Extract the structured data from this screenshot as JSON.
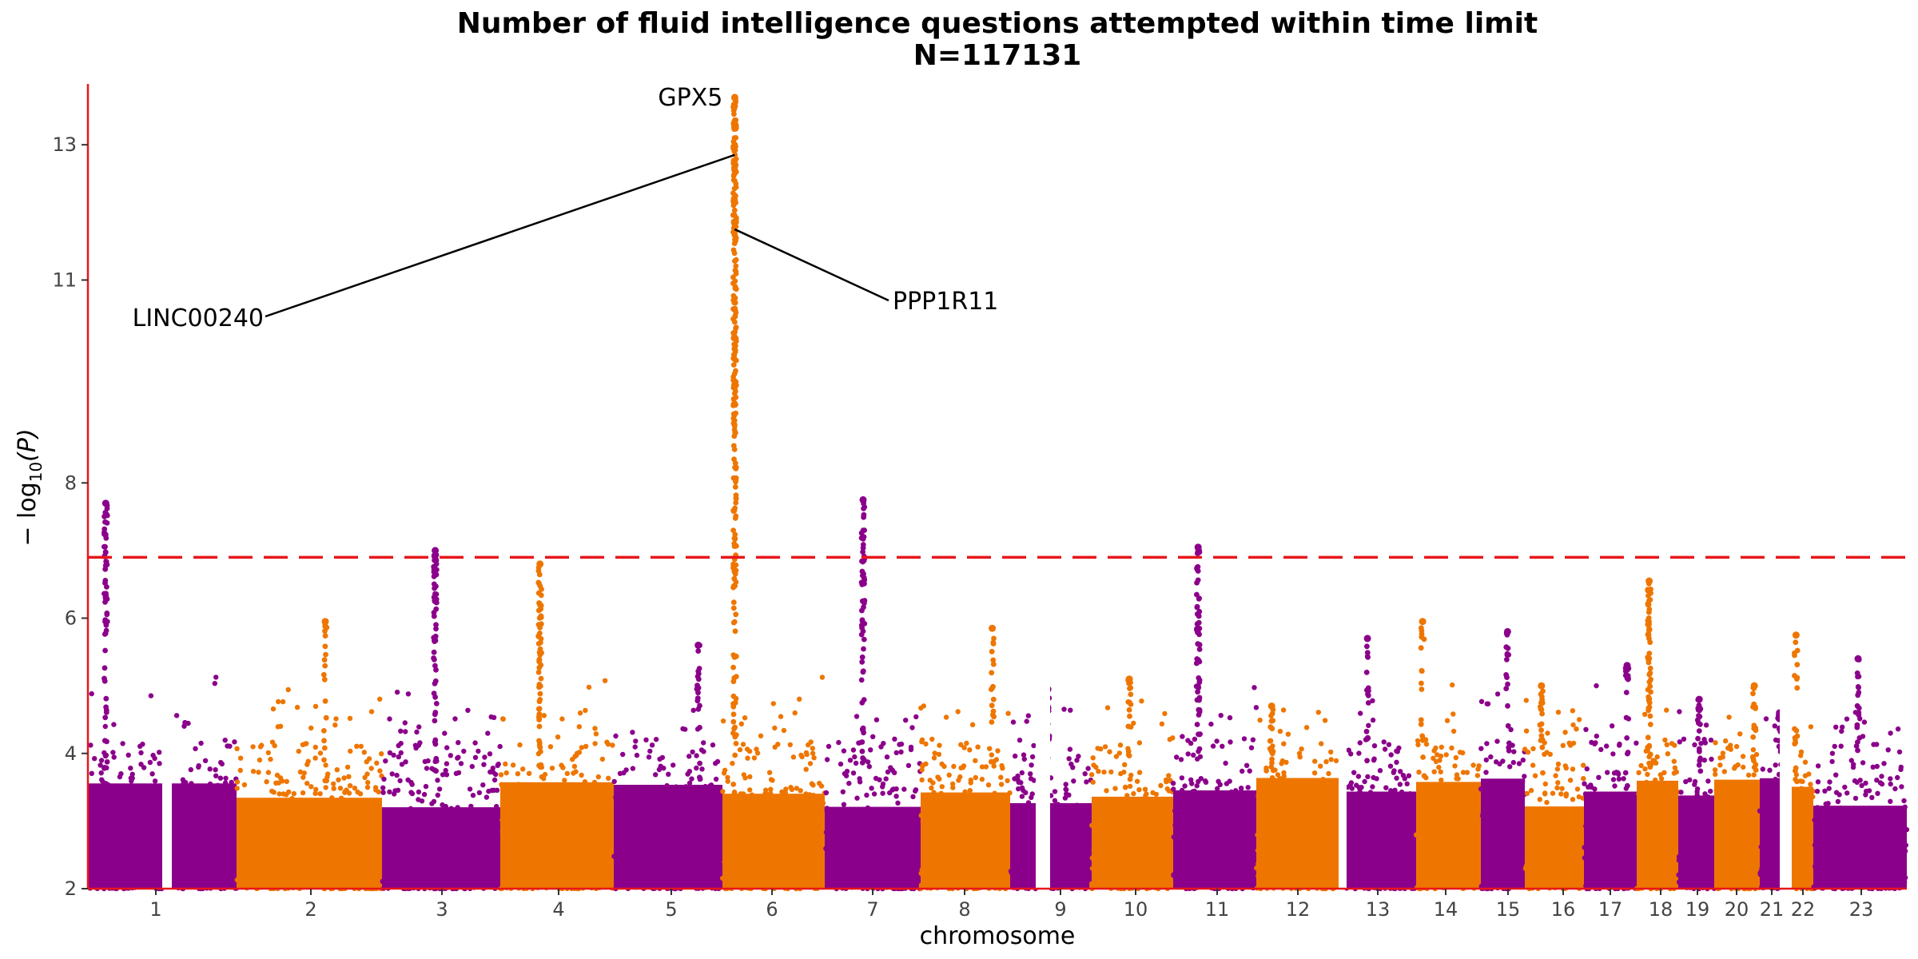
{
  "chart_data": {
    "type": "scatter",
    "subtype": "manhattan",
    "title": "Number of fluid intelligence questions attempted within time limit",
    "subtitle": "N=117131",
    "xlabel": "chromosome",
    "ylabel": "−log10(P)",
    "ylabel_main": "− log",
    "ylabel_sub": "10",
    "ylabel_paren": "(P)",
    "ylim": [
      2,
      13.9
    ],
    "y_ticks": [
      {
        "value": 2,
        "label": "2"
      },
      {
        "value": 4,
        "label": "4"
      },
      {
        "value": 6,
        "label": "6"
      },
      {
        "value": 8,
        "label": "8"
      },
      {
        "value": 11,
        "label": "11"
      },
      {
        "value": 13,
        "label": "13"
      }
    ],
    "significance_threshold": 6.9,
    "grid": false,
    "colors": {
      "odd_chromosome": "#8B008B",
      "even_chromosome": "#EE7600",
      "threshold": "#E8161B",
      "axis": "#E8161B"
    },
    "chromosomes": [
      {
        "label": "1",
        "peak": 7.7
      },
      {
        "label": "2",
        "peak": 5.95
      },
      {
        "label": "3",
        "peak": 7.0
      },
      {
        "label": "4",
        "peak": 6.8
      },
      {
        "label": "5",
        "peak": 5.6
      },
      {
        "label": "6",
        "peak": 13.7
      },
      {
        "label": "7",
        "peak": 7.75
      },
      {
        "label": "8",
        "peak": 5.85
      },
      {
        "label": "9",
        "peak": 4.95
      },
      {
        "label": "10",
        "peak": 5.1
      },
      {
        "label": "11",
        "peak": 7.05
      },
      {
        "label": "12",
        "peak": 4.7
      },
      {
        "label": "13",
        "peak": 5.7
      },
      {
        "label": "14",
        "peak": 5.95
      },
      {
        "label": "15",
        "peak": 5.8
      },
      {
        "label": "16",
        "peak": 5.0
      },
      {
        "label": "17",
        "peak": 5.3
      },
      {
        "label": "18",
        "peak": 6.55
      },
      {
        "label": "19",
        "peak": 4.8
      },
      {
        "label": "20",
        "peak": 5.0
      },
      {
        "label": "21",
        "peak": 4.6
      },
      {
        "label": "22",
        "peak": 5.75
      },
      {
        "label": "23",
        "peak": 5.4
      }
    ],
    "annotations": [
      {
        "label": "GPX5",
        "chromosome": "6",
        "y": 13.7
      },
      {
        "label": "LINC00240",
        "chromosome": "6",
        "y": 12.85
      },
      {
        "label": "PPP1R11",
        "chromosome": "6",
        "y": 11.75
      }
    ]
  }
}
